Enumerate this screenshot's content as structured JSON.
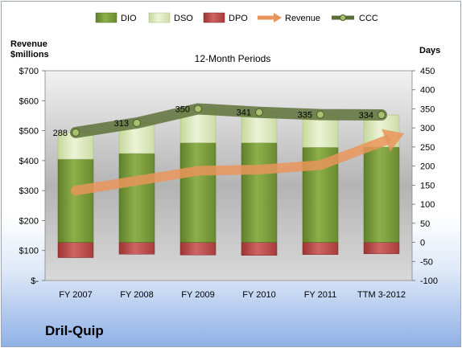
{
  "chart_data": {
    "type": "bar",
    "subtitle": "12-Month Periods",
    "categories": [
      "FY 2007",
      "FY 2008",
      "FY 2009",
      "FY 2010",
      "FY 2011",
      "TTM 3-2012"
    ],
    "left_axis": {
      "label_line1": "Revenue",
      "label_line2": "$millions",
      "ticks": [
        "$-",
        "$100",
        "$200",
        "$300",
        "$400",
        "$500",
        "$600",
        "$700"
      ],
      "range": [
        0,
        700
      ]
    },
    "right_axis": {
      "label": "Days",
      "ticks": [
        "-100",
        "-50",
        "0",
        "50",
        "100",
        "150",
        "200",
        "250",
        "300",
        "350",
        "400",
        "450"
      ],
      "range": [
        -100,
        450
      ]
    },
    "series": [
      {
        "name": "DIO",
        "axis": "right",
        "stacked": true,
        "color": "#7a9a3c",
        "values": [
          218,
          233,
          261,
          261,
          249,
          250
        ]
      },
      {
        "name": "DSO",
        "axis": "right",
        "stacked": true,
        "color": "#d8e6b0",
        "values": [
          70,
          80,
          89,
          80,
          86,
          84
        ]
      },
      {
        "name": "DPO",
        "axis": "right",
        "stacked": false,
        "color": "#b84848",
        "values": [
          -40,
          -31,
          -33,
          -34,
          -32,
          -30
        ]
      },
      {
        "name": "Revenue",
        "axis": "left",
        "type": "arrow",
        "color": "#e9955a",
        "values": [
          300,
          333,
          366,
          370,
          385,
          462
        ]
      },
      {
        "name": "CCC",
        "axis": "right",
        "type": "line",
        "color": "#5a6e34",
        "values": [
          288,
          313,
          350,
          341,
          335,
          334
        ],
        "labels": [
          "288",
          "313",
          "350",
          "341",
          "335",
          "334"
        ]
      }
    ],
    "legend_position": "top",
    "grid": false,
    "company": "Dril-Quip"
  }
}
